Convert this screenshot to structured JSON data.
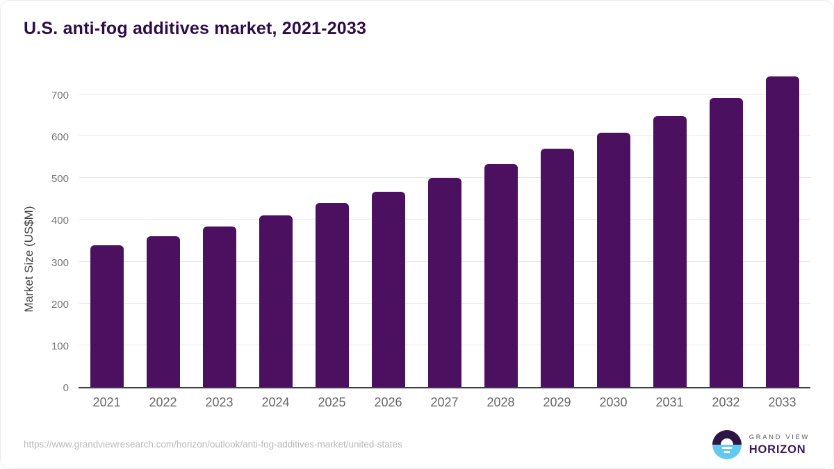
{
  "title": "U.S. anti-fog additives market, 2021-2033",
  "chart_data": {
    "type": "bar",
    "title": "U.S. anti-fog additives market, 2021-2033",
    "categories": [
      "2021",
      "2022",
      "2023",
      "2024",
      "2025",
      "2026",
      "2027",
      "2028",
      "2029",
      "2030",
      "2031",
      "2032",
      "2033"
    ],
    "values": [
      340,
      361,
      384,
      410,
      440,
      468,
      500,
      534,
      571,
      608,
      648,
      691,
      744
    ],
    "xlabel": "",
    "ylabel": "Market Size (US$M)",
    "ylim": [
      0,
      750
    ],
    "yticks": [
      0,
      100,
      200,
      300,
      400,
      500,
      600,
      700
    ],
    "grid": true,
    "legend": "none",
    "bar_color": "#4b1160"
  },
  "colors": {
    "title_text": "#2e0c49",
    "bar": "#4b1160",
    "gridline": "#e8e8e8",
    "axis_line": "#3d3d3d",
    "tick_text": "#757575",
    "url_text": "#b9b9b9",
    "logo_dark": "#2d1544",
    "logo_blue": "#62c9f0"
  },
  "footer": {
    "source_url": "https://www.grandviewresearch.com/horizon/outlook/anti-fog-additives-market/united-states",
    "logo": {
      "line1": "GRAND VIEW",
      "line2": "HORIZON"
    }
  }
}
